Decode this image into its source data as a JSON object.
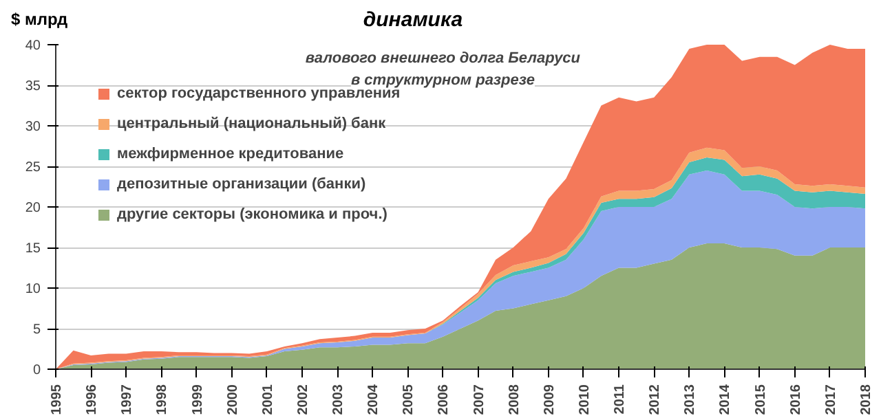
{
  "chart_data": {
    "type": "area",
    "stacked": true,
    "title": "динамика",
    "subtitle": "валового внешнего долга Беларуси\nв структурном разрезе",
    "ylabel": "$ млрд",
    "x": [
      1995,
      1995.5,
      1996,
      1996.5,
      1997,
      1997.5,
      1998,
      1998.5,
      1999,
      1999.5,
      2000,
      2000.5,
      2001,
      2001.5,
      2002,
      2002.5,
      2003,
      2003.5,
      2004,
      2004.5,
      2005,
      2005.5,
      2006,
      2006.5,
      2007,
      2007.5,
      2008,
      2008.5,
      2009,
      2009.5,
      2010,
      2010.5,
      2011,
      2011.5,
      2012,
      2012.5,
      2013,
      2013.5,
      2014,
      2014.5,
      2015,
      2015.5,
      2016,
      2016.5,
      2017,
      2017.5,
      2018
    ],
    "series": [
      {
        "name": "другие секторы (экономика и проч.)",
        "color": "#94ae78",
        "values": [
          0,
          0.5,
          0.6,
          0.8,
          0.9,
          1.2,
          1.3,
          1.5,
          1.5,
          1.5,
          1.5,
          1.4,
          1.6,
          2.2,
          2.4,
          2.7,
          2.7,
          2.8,
          3.0,
          3.0,
          3.2,
          3.2,
          4.0,
          5.0,
          6.0,
          7.2,
          7.5,
          8.0,
          8.5,
          9.0,
          10.0,
          11.5,
          12.5,
          12.5,
          13.0,
          13.5,
          15.0,
          15.5,
          15.5,
          15.0,
          15.0,
          14.8,
          14.0,
          14.0,
          15.0,
          15.0,
          15.0
        ]
      },
      {
        "name": "депозитные организации (банки)",
        "color": "#8fa8f0",
        "values": [
          0,
          0.1,
          0.1,
          0.1,
          0.1,
          0.1,
          0.1,
          0.1,
          0.1,
          0.1,
          0.1,
          0.1,
          0.1,
          0.3,
          0.4,
          0.5,
          0.6,
          0.7,
          0.9,
          0.9,
          1.0,
          1.2,
          1.5,
          2.0,
          2.5,
          3.4,
          4.0,
          4.0,
          4.0,
          4.5,
          6.0,
          8.0,
          7.5,
          7.5,
          7.0,
          7.5,
          9.0,
          9.0,
          8.5,
          7.0,
          7.0,
          6.7,
          6.0,
          5.8,
          5.0,
          5.0,
          4.8
        ]
      },
      {
        "name": "межфирменное кредитование",
        "color": "#4dbdb5",
        "values": [
          0,
          0,
          0,
          0,
          0,
          0,
          0,
          0,
          0,
          0,
          0,
          0,
          0,
          0,
          0,
          0,
          0,
          0,
          0,
          0,
          0,
          0,
          0.1,
          0.2,
          0.3,
          0.4,
          0.5,
          0.5,
          0.6,
          0.7,
          0.8,
          1.0,
          1.0,
          1.0,
          1.2,
          1.3,
          1.5,
          1.6,
          1.8,
          1.8,
          2.0,
          2.0,
          2.0,
          2.0,
          2.0,
          1.8,
          1.8
        ]
      },
      {
        "name": "центральный (национальный) банк",
        "color": "#f7a86b",
        "values": [
          0,
          0.1,
          0.1,
          0.1,
          0.1,
          0.1,
          0.1,
          0.1,
          0.1,
          0.1,
          0.1,
          0.1,
          0.1,
          0.1,
          0.1,
          0.1,
          0.1,
          0.1,
          0.1,
          0.1,
          0.1,
          0.1,
          0.2,
          0.3,
          0.5,
          0.6,
          0.8,
          0.8,
          0.7,
          0.6,
          0.6,
          0.8,
          1.0,
          1.0,
          1.0,
          1.0,
          1.2,
          1.2,
          1.2,
          1.0,
          1.0,
          1.0,
          0.8,
          0.8,
          0.8,
          0.8,
          0.8
        ]
      },
      {
        "name": "сектор государственного управления",
        "color": "#f4795a",
        "values": [
          0,
          1.6,
          0.9,
          0.9,
          0.8,
          0.8,
          0.7,
          0.4,
          0.4,
          0.3,
          0.3,
          0.3,
          0.4,
          0.2,
          0.3,
          0.4,
          0.5,
          0.5,
          0.5,
          0.5,
          0.5,
          0.5,
          0.2,
          0.3,
          0.2,
          1.9,
          2.2,
          3.7,
          7.2,
          8.7,
          10.6,
          11.2,
          11.5,
          11.0,
          11.3,
          12.7,
          12.8,
          12.7,
          13.0,
          13.2,
          13.5,
          14.0,
          14.7,
          16.4,
          17.2,
          16.9,
          17.1
        ]
      }
    ],
    "xlim": [
      1995,
      2018
    ],
    "xticks": [
      1995,
      1996,
      1997,
      1998,
      1999,
      2000,
      2001,
      2002,
      2003,
      2004,
      2005,
      2006,
      2007,
      2008,
      2009,
      2010,
      2011,
      2012,
      2013,
      2014,
      2015,
      2016,
      2017,
      2018
    ],
    "ylim": [
      0,
      40
    ],
    "yticks": [
      0,
      5,
      10,
      15,
      20,
      25,
      30,
      35,
      40
    ],
    "grid": "y",
    "legend": "top left"
  }
}
